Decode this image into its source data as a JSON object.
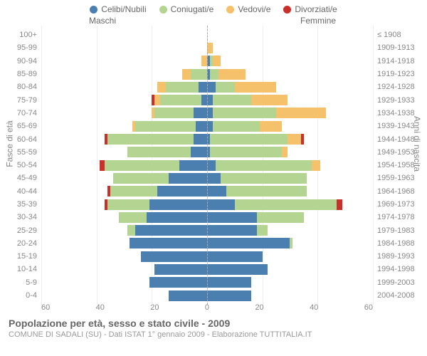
{
  "legend": [
    {
      "label": "Celibi/Nubili",
      "color": "#4a7fb0"
    },
    {
      "label": "Coniugati/e",
      "color": "#b4d491"
    },
    {
      "label": "Vedovi/e",
      "color": "#f5c26b"
    },
    {
      "label": "Divorziati/e",
      "color": "#c9302c"
    }
  ],
  "sideTitles": {
    "left": "Maschi",
    "right": "Femmine"
  },
  "axisLabels": {
    "left": "Fasce di età",
    "right": "Anni di nascita"
  },
  "xMax": 60,
  "xTicks": [
    60,
    40,
    20,
    0,
    20,
    40,
    60
  ],
  "pxPerUnit": 3.88,
  "rows": [
    {
      "age": "100+",
      "birth": "≤ 1908",
      "m": {
        "c": 0,
        "co": 0,
        "v": 0,
        "d": 0
      },
      "f": {
        "c": 0,
        "co": 0,
        "v": 0,
        "d": 0
      }
    },
    {
      "age": "95-99",
      "birth": "1909-1913",
      "m": {
        "c": 0,
        "co": 0,
        "v": 0,
        "d": 0
      },
      "f": {
        "c": 0,
        "co": 0,
        "v": 2,
        "d": 0
      }
    },
    {
      "age": "90-94",
      "birth": "1914-1918",
      "m": {
        "c": 0,
        "co": 0,
        "v": 2,
        "d": 0
      },
      "f": {
        "c": 1,
        "co": 1,
        "v": 3,
        "d": 0
      }
    },
    {
      "age": "85-89",
      "birth": "1919-1923",
      "m": {
        "c": 0,
        "co": 6,
        "v": 3,
        "d": 0
      },
      "f": {
        "c": 1,
        "co": 3,
        "v": 10,
        "d": 0
      }
    },
    {
      "age": "80-84",
      "birth": "1924-1928",
      "m": {
        "c": 3,
        "co": 12,
        "v": 3,
        "d": 0
      },
      "f": {
        "c": 3,
        "co": 7,
        "v": 15,
        "d": 0
      }
    },
    {
      "age": "75-79",
      "birth": "1929-1933",
      "m": {
        "c": 2,
        "co": 15,
        "v": 2,
        "d": 1
      },
      "f": {
        "c": 2,
        "co": 14,
        "v": 13,
        "d": 0
      }
    },
    {
      "age": "70-74",
      "birth": "1934-1938",
      "m": {
        "c": 5,
        "co": 14,
        "v": 1,
        "d": 0
      },
      "f": {
        "c": 2,
        "co": 23,
        "v": 18,
        "d": 0
      }
    },
    {
      "age": "65-69",
      "birth": "1939-1943",
      "m": {
        "c": 4,
        "co": 22,
        "v": 1,
        "d": 0
      },
      "f": {
        "c": 2,
        "co": 17,
        "v": 8,
        "d": 0
      }
    },
    {
      "age": "60-64",
      "birth": "1944-1948",
      "m": {
        "c": 5,
        "co": 31,
        "v": 0,
        "d": 1
      },
      "f": {
        "c": 1,
        "co": 28,
        "v": 5,
        "d": 1
      }
    },
    {
      "age": "55-59",
      "birth": "1949-1953",
      "m": {
        "c": 6,
        "co": 23,
        "v": 0,
        "d": 0
      },
      "f": {
        "c": 1,
        "co": 26,
        "v": 2,
        "d": 0
      }
    },
    {
      "age": "50-54",
      "birth": "1954-1958",
      "m": {
        "c": 10,
        "co": 27,
        "v": 0,
        "d": 2
      },
      "f": {
        "c": 3,
        "co": 35,
        "v": 3,
        "d": 0
      }
    },
    {
      "age": "45-49",
      "birth": "1959-1963",
      "m": {
        "c": 14,
        "co": 20,
        "v": 0,
        "d": 0
      },
      "f": {
        "c": 5,
        "co": 31,
        "v": 0,
        "d": 0
      }
    },
    {
      "age": "40-44",
      "birth": "1964-1968",
      "m": {
        "c": 18,
        "co": 17,
        "v": 0,
        "d": 1
      },
      "f": {
        "c": 7,
        "co": 29,
        "v": 0,
        "d": 0
      }
    },
    {
      "age": "35-39",
      "birth": "1969-1973",
      "m": {
        "c": 21,
        "co": 15,
        "v": 0,
        "d": 1
      },
      "f": {
        "c": 10,
        "co": 37,
        "v": 0,
        "d": 2
      }
    },
    {
      "age": "30-34",
      "birth": "1974-1978",
      "m": {
        "c": 22,
        "co": 10,
        "v": 0,
        "d": 0
      },
      "f": {
        "c": 18,
        "co": 17,
        "v": 0,
        "d": 0
      }
    },
    {
      "age": "25-29",
      "birth": "1979-1983",
      "m": {
        "c": 26,
        "co": 3,
        "v": 0,
        "d": 0
      },
      "f": {
        "c": 18,
        "co": 4,
        "v": 0,
        "d": 0
      }
    },
    {
      "age": "20-24",
      "birth": "1984-1988",
      "m": {
        "c": 28,
        "co": 0,
        "v": 0,
        "d": 0
      },
      "f": {
        "c": 30,
        "co": 1,
        "v": 0,
        "d": 0
      }
    },
    {
      "age": "15-19",
      "birth": "1989-1993",
      "m": {
        "c": 24,
        "co": 0,
        "v": 0,
        "d": 0
      },
      "f": {
        "c": 20,
        "co": 0,
        "v": 0,
        "d": 0
      }
    },
    {
      "age": "10-14",
      "birth": "1994-1998",
      "m": {
        "c": 19,
        "co": 0,
        "v": 0,
        "d": 0
      },
      "f": {
        "c": 22,
        "co": 0,
        "v": 0,
        "d": 0
      }
    },
    {
      "age": "5-9",
      "birth": "1999-2003",
      "m": {
        "c": 21,
        "co": 0,
        "v": 0,
        "d": 0
      },
      "f": {
        "c": 16,
        "co": 0,
        "v": 0,
        "d": 0
      }
    },
    {
      "age": "0-4",
      "birth": "2004-2008",
      "m": {
        "c": 14,
        "co": 0,
        "v": 0,
        "d": 0
      },
      "f": {
        "c": 16,
        "co": 0,
        "v": 0,
        "d": 0
      }
    }
  ],
  "footer": {
    "title": "Popolazione per età, sesso e stato civile - 2009",
    "sub": "COMUNE DI SADALI (SU) - Dati ISTAT 1° gennaio 2009 - Elaborazione TUTTITALIA.IT"
  },
  "colors": {
    "celibi": "#4a7fb0",
    "coniugati": "#b4d491",
    "vedovi": "#f5c26b",
    "divorziati": "#c9302c",
    "grid": "#eeeeee",
    "textMuted": "#888888"
  }
}
